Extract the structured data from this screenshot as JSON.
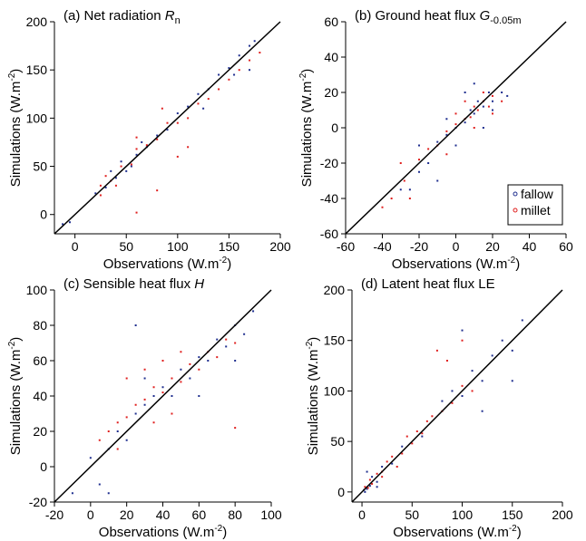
{
  "figure": {
    "legend": [
      {
        "label": "fallow",
        "color": "#1f2f8f"
      },
      {
        "label": "millet",
        "color": "#e0201f"
      }
    ]
  },
  "chart_data": [
    {
      "type": "scatter",
      "panel": "a",
      "title": "(a) Net radiation R",
      "title_sub": "n",
      "xlabel": "Observations (W.m",
      "ylabel": "Simulations (W.m",
      "unit_sup": "-2",
      "unit_close": ")",
      "xlim": [
        -20,
        200
      ],
      "ylim": [
        -20,
        200
      ],
      "xticks": [
        0,
        50,
        100,
        150,
        200
      ],
      "yticks": [
        0,
        50,
        100,
        150,
        200
      ],
      "one_to_one_line": true,
      "series": [
        {
          "name": "fallow",
          "color": "#1f2f8f",
          "points": [
            [
              20,
              22
            ],
            [
              30,
              28
            ],
            [
              40,
              38
            ],
            [
              50,
              45
            ],
            [
              60,
              62
            ],
            [
              70,
              70
            ],
            [
              80,
              82
            ],
            [
              90,
              88
            ],
            [
              100,
              105
            ],
            [
              110,
              112
            ],
            [
              120,
              125
            ],
            [
              130,
              130
            ],
            [
              140,
              145
            ],
            [
              150,
              152
            ],
            [
              160,
              165
            ],
            [
              170,
              175
            ],
            [
              175,
              180
            ],
            [
              -12,
              -10
            ],
            [
              -5,
              -8
            ],
            [
              170,
              150
            ],
            [
              155,
              145
            ],
            [
              125,
              110
            ],
            [
              45,
              55
            ],
            [
              35,
              45
            ],
            [
              55,
              50
            ],
            [
              65,
              75
            ]
          ]
        },
        {
          "name": "millet",
          "color": "#e0201f",
          "points": [
            [
              25,
              30
            ],
            [
              35,
              35
            ],
            [
              45,
              50
            ],
            [
              55,
              52
            ],
            [
              60,
              68
            ],
            [
              70,
              72
            ],
            [
              80,
              78
            ],
            [
              90,
              95
            ],
            [
              100,
              95
            ],
            [
              110,
              100
            ],
            [
              120,
              115
            ],
            [
              130,
              120
            ],
            [
              140,
              130
            ],
            [
              150,
              140
            ],
            [
              160,
              150
            ],
            [
              170,
              160
            ],
            [
              180,
              168
            ],
            [
              60,
              2
            ],
            [
              80,
              25
            ],
            [
              25,
              20
            ],
            [
              40,
              30
            ],
            [
              100,
              60
            ],
            [
              110,
              70
            ],
            [
              85,
              110
            ],
            [
              60,
              80
            ],
            [
              30,
              40
            ]
          ]
        }
      ]
    },
    {
      "type": "scatter",
      "panel": "b",
      "title": "(b) Ground heat flux G",
      "title_sub": "-0.05m",
      "xlabel": "Observations (W.m",
      "ylabel": "Simulations (W.m",
      "unit_sup": "-2",
      "unit_close": ")",
      "xlim": [
        -60,
        60
      ],
      "ylim": [
        -60,
        60
      ],
      "xticks": [
        -60,
        -40,
        -20,
        0,
        20,
        40,
        60
      ],
      "yticks": [
        -60,
        -40,
        -20,
        0,
        20,
        40,
        60
      ],
      "one_to_one_line": true,
      "legend_position": "lower-right",
      "series": [
        {
          "name": "fallow",
          "color": "#1f2f8f",
          "points": [
            [
              -30,
              -35
            ],
            [
              -20,
              -25
            ],
            [
              -15,
              -20
            ],
            [
              -10,
              -8
            ],
            [
              -5,
              -4
            ],
            [
              0,
              0
            ],
            [
              5,
              3
            ],
            [
              8,
              10
            ],
            [
              10,
              8
            ],
            [
              12,
              15
            ],
            [
              15,
              12
            ],
            [
              18,
              20
            ],
            [
              20,
              15
            ],
            [
              25,
              20
            ],
            [
              -25,
              -35
            ],
            [
              -10,
              -30
            ],
            [
              0,
              -10
            ],
            [
              5,
              20
            ],
            [
              10,
              25
            ],
            [
              -5,
              5
            ],
            [
              15,
              0
            ],
            [
              -20,
              -10
            ],
            [
              20,
              10
            ],
            [
              28,
              18
            ]
          ]
        },
        {
          "name": "millet",
          "color": "#e0201f",
          "points": [
            [
              -35,
              -40
            ],
            [
              -28,
              -30
            ],
            [
              -20,
              -18
            ],
            [
              -15,
              -12
            ],
            [
              -10,
              -10
            ],
            [
              -5,
              -2
            ],
            [
              0,
              2
            ],
            [
              5,
              5
            ],
            [
              8,
              6
            ],
            [
              10,
              12
            ],
            [
              12,
              10
            ],
            [
              15,
              15
            ],
            [
              18,
              12
            ],
            [
              20,
              18
            ],
            [
              -40,
              -45
            ],
            [
              -30,
              -20
            ],
            [
              -5,
              -15
            ],
            [
              5,
              15
            ],
            [
              10,
              0
            ],
            [
              0,
              8
            ],
            [
              20,
              8
            ],
            [
              -25,
              -40
            ],
            [
              15,
              20
            ],
            [
              25,
              15
            ]
          ]
        }
      ]
    },
    {
      "type": "scatter",
      "panel": "c",
      "title": "(c) Sensible heat flux H",
      "title_sub": "",
      "xlabel": "Observations (W.m",
      "ylabel": "Simulations (W.m",
      "unit_sup": "-2",
      "unit_close": ")",
      "xlim": [
        -20,
        100
      ],
      "ylim": [
        -20,
        100
      ],
      "xticks": [
        -20,
        0,
        20,
        40,
        60,
        80,
        100
      ],
      "yticks": [
        -20,
        0,
        20,
        40,
        60,
        80,
        100
      ],
      "one_to_one_line": true,
      "series": [
        {
          "name": "fallow",
          "color": "#1f2f8f",
          "points": [
            [
              0,
              5
            ],
            [
              5,
              -10
            ],
            [
              10,
              10
            ],
            [
              15,
              20
            ],
            [
              20,
              15
            ],
            [
              25,
              30
            ],
            [
              30,
              35
            ],
            [
              35,
              40
            ],
            [
              40,
              45
            ],
            [
              45,
              40
            ],
            [
              50,
              55
            ],
            [
              55,
              50
            ],
            [
              60,
              62
            ],
            [
              65,
              60
            ],
            [
              70,
              72
            ],
            [
              75,
              68
            ],
            [
              80,
              80
            ],
            [
              85,
              75
            ],
            [
              90,
              88
            ],
            [
              -10,
              -15
            ],
            [
              10,
              -15
            ],
            [
              30,
              50
            ],
            [
              60,
              40
            ],
            [
              80,
              60
            ],
            [
              25,
              80
            ]
          ]
        },
        {
          "name": "millet",
          "color": "#e0201f",
          "points": [
            [
              5,
              15
            ],
            [
              10,
              20
            ],
            [
              15,
              25
            ],
            [
              20,
              28
            ],
            [
              25,
              35
            ],
            [
              30,
              38
            ],
            [
              35,
              45
            ],
            [
              40,
              42
            ],
            [
              45,
              50
            ],
            [
              50,
              48
            ],
            [
              55,
              58
            ],
            [
              60,
              55
            ],
            [
              65,
              65
            ],
            [
              70,
              62
            ],
            [
              75,
              72
            ],
            [
              80,
              70
            ],
            [
              20,
              50
            ],
            [
              30,
              55
            ],
            [
              40,
              60
            ],
            [
              50,
              65
            ],
            [
              35,
              25
            ],
            [
              45,
              30
            ],
            [
              15,
              10
            ],
            [
              80,
              22
            ]
          ]
        }
      ]
    },
    {
      "type": "scatter",
      "panel": "d",
      "title": "(d) Latent heat flux LE",
      "title_sub": "",
      "xlabel": "Observations (W.m",
      "ylabel": "Simulations (W.m",
      "unit_sup": "-2",
      "unit_close": ")",
      "xlim": [
        -10,
        200
      ],
      "ylim": [
        -10,
        200
      ],
      "xticks": [
        0,
        50,
        100,
        150,
        200
      ],
      "yticks": [
        0,
        50,
        100,
        150,
        200
      ],
      "one_to_one_line": true,
      "series": [
        {
          "name": "fallow",
          "color": "#1f2f8f",
          "points": [
            [
              2,
              2
            ],
            [
              5,
              3
            ],
            [
              8,
              6
            ],
            [
              10,
              15
            ],
            [
              15,
              10
            ],
            [
              20,
              25
            ],
            [
              30,
              28
            ],
            [
              40,
              45
            ],
            [
              60,
              55
            ],
            [
              80,
              90
            ],
            [
              90,
              100
            ],
            [
              100,
              95
            ],
            [
              110,
              120
            ],
            [
              120,
              110
            ],
            [
              130,
              135
            ],
            [
              140,
              150
            ],
            [
              150,
              140
            ],
            [
              160,
              170
            ],
            [
              100,
              160
            ],
            [
              120,
              80
            ],
            [
              150,
              110
            ],
            [
              5,
              20
            ],
            [
              15,
              5
            ],
            [
              3,
              0
            ]
          ]
        },
        {
          "name": "millet",
          "color": "#e0201f",
          "points": [
            [
              3,
              5
            ],
            [
              6,
              4
            ],
            [
              10,
              8
            ],
            [
              15,
              18
            ],
            [
              20,
              20
            ],
            [
              25,
              30
            ],
            [
              30,
              35
            ],
            [
              40,
              38
            ],
            [
              50,
              48
            ],
            [
              55,
              60
            ],
            [
              60,
              58
            ],
            [
              70,
              75
            ],
            [
              80,
              80
            ],
            [
              90,
              88
            ],
            [
              100,
              105
            ],
            [
              110,
              100
            ],
            [
              75,
              140
            ],
            [
              85,
              130
            ],
            [
              100,
              150
            ],
            [
              45,
              55
            ],
            [
              35,
              25
            ],
            [
              65,
              70
            ],
            [
              20,
              15
            ],
            [
              8,
              12
            ]
          ]
        }
      ]
    }
  ]
}
